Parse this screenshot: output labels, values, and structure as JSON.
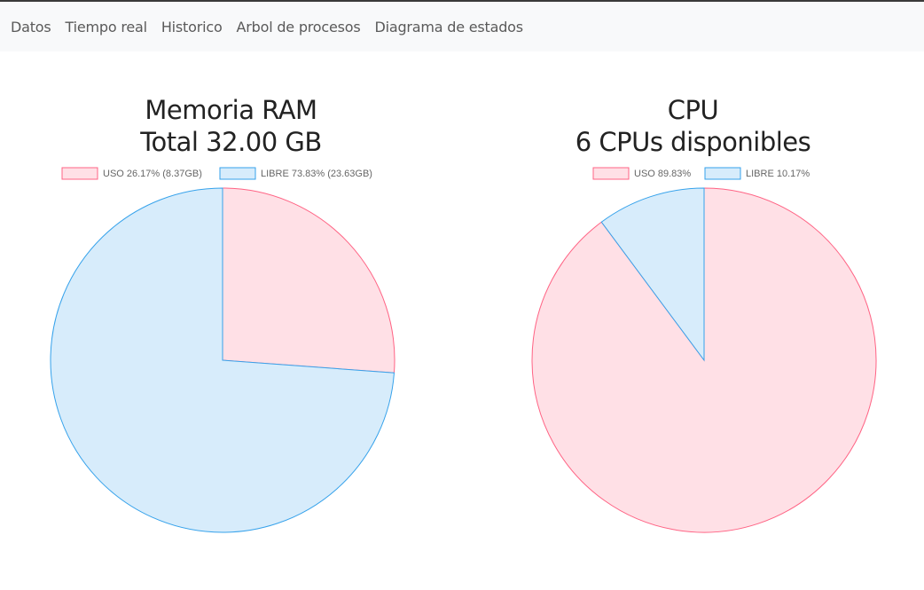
{
  "nav": {
    "items": [
      {
        "label": "Datos"
      },
      {
        "label": "Tiempo real"
      },
      {
        "label": "Historico"
      },
      {
        "label": "Arbol de procesos"
      },
      {
        "label": "Diagrama de estados"
      }
    ]
  },
  "colors": {
    "uso_fill": "#ffe0e6",
    "uso_stroke": "#ff6384",
    "libre_fill": "#d7ecfb",
    "libre_stroke": "#36a2eb"
  },
  "chart_data": [
    {
      "type": "pie",
      "title": "Memoria RAM",
      "subtitle": "Total 32.00 GB",
      "legend_position": "top",
      "slices": [
        {
          "label": "USO 26.17% (8.37GB)",
          "value": 26.17
        },
        {
          "label": "LIBRE 73.83% (23.63GB)",
          "value": 73.83
        }
      ]
    },
    {
      "type": "pie",
      "title": "CPU",
      "subtitle": "6 CPUs disponibles",
      "legend_position": "top",
      "slices": [
        {
          "label": "USO 89.83%",
          "value": 89.83
        },
        {
          "label": "LIBRE 10.17%",
          "value": 10.17
        }
      ]
    }
  ]
}
